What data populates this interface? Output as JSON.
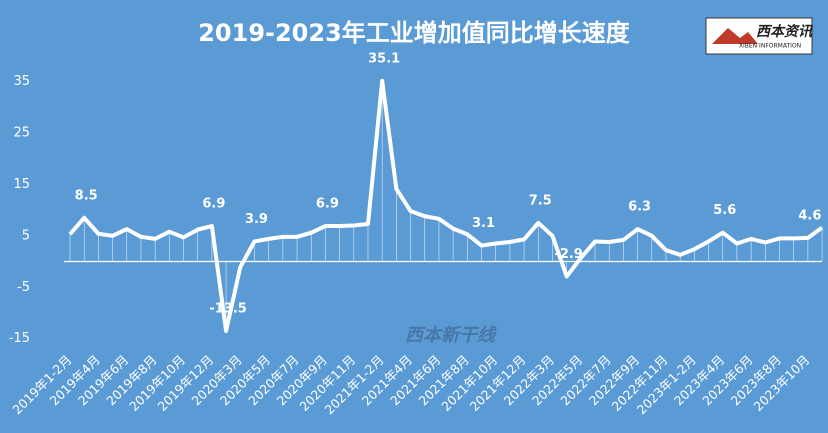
{
  "chart_data": {
    "type": "line",
    "title": "2019-2023年工业增加值同比增长速度",
    "logo": {
      "name": "西本资讯",
      "subtitle": "XIBEN INFORMATION"
    },
    "watermark": "西本新干线",
    "categories": [
      "2019年1-2月",
      null,
      "2019年4月",
      null,
      "2019年6月",
      null,
      "2019年8月",
      null,
      "2019年10月",
      null,
      "2019年12月",
      null,
      "2020年3月",
      null,
      "2020年5月",
      null,
      "2020年7月",
      null,
      "2020年9月",
      null,
      "2020年11月",
      null,
      "2021年1-2月",
      null,
      "2021年4月",
      null,
      "2021年6月",
      null,
      "2021年8月",
      null,
      "2021年10月",
      null,
      "2021年12月",
      null,
      "2022年3月",
      null,
      "2022年5月",
      null,
      "2022年7月",
      null,
      "2022年9月",
      null,
      "2022年11月",
      null,
      "2023年1-2月",
      null,
      "2023年4月",
      null,
      "2023年6月",
      null,
      "2023年8月",
      null,
      "2023年10月",
      null
    ],
    "values": [
      5.3,
      8.5,
      5.4,
      5.0,
      6.3,
      4.8,
      4.4,
      5.8,
      4.7,
      6.2,
      6.9,
      -13.5,
      -1.1,
      3.9,
      4.4,
      4.8,
      4.8,
      5.6,
      6.9,
      6.9,
      7.0,
      7.3,
      35.1,
      14.1,
      9.8,
      8.8,
      8.3,
      6.4,
      5.3,
      3.1,
      3.5,
      3.8,
      4.3,
      7.5,
      5.0,
      -2.9,
      0.7,
      3.9,
      3.8,
      4.2,
      6.3,
      5.0,
      2.2,
      1.3,
      2.4,
      3.9,
      5.6,
      3.5,
      4.4,
      3.7,
      4.5,
      4.5,
      4.6,
      6.6
    ],
    "value_labels": [
      null,
      "8.5",
      null,
      null,
      null,
      null,
      null,
      null,
      null,
      null,
      "6.9",
      "-13.5",
      null,
      "3.9",
      null,
      null,
      null,
      null,
      "6.9",
      null,
      null,
      null,
      "35.1",
      null,
      null,
      null,
      null,
      null,
      null,
      "3.1",
      null,
      null,
      null,
      "7.5",
      null,
      "-2.9",
      null,
      null,
      null,
      null,
      "6.3",
      null,
      null,
      null,
      null,
      null,
      "5.6",
      null,
      null,
      null,
      null,
      null,
      "4.6",
      null
    ],
    "color": "#ffffff",
    "ylim": [
      -17,
      38
    ],
    "yticks": [
      -15,
      -5,
      5,
      15,
      25,
      35
    ]
  }
}
